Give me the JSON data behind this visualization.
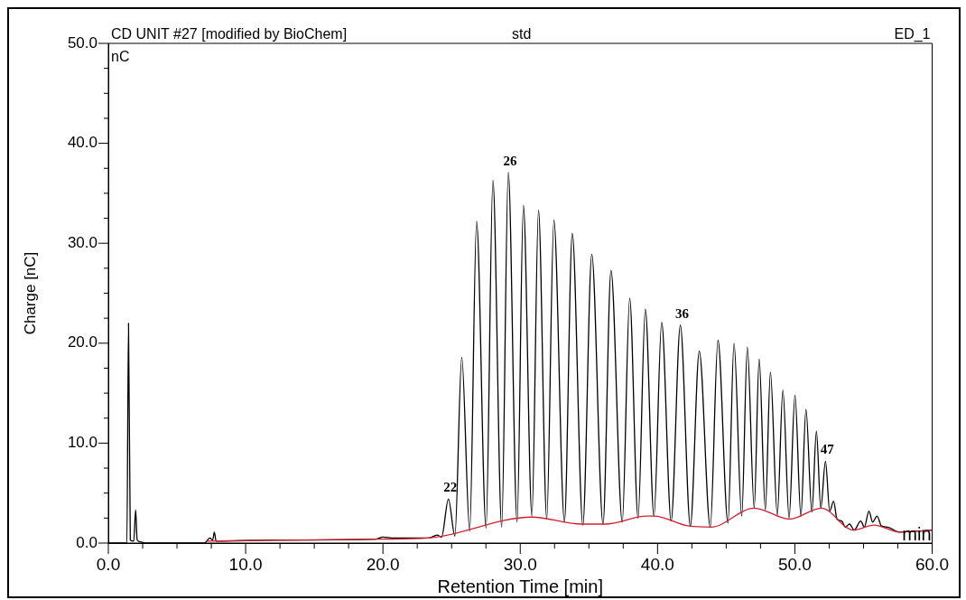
{
  "chart_data": {
    "type": "line",
    "title": "CD UNIT #27 [modified by BioChem]",
    "subtitle": "std",
    "xlabel": "Retention Time [min]",
    "ylabel": "Charge [nC]",
    "annotations": [
      "ED_1",
      "nC",
      "min",
      {
        "text": "22",
        "x": 24.77,
        "y": 4.4
      },
      {
        "text": "26",
        "x": 29.13,
        "y": 37.1
      },
      {
        "text": "36",
        "x": 41.66,
        "y": 21.8
      },
      {
        "text": "47",
        "x": 52.23,
        "y": 8.2
      }
    ],
    "xlim": [
      0,
      60
    ],
    "xticks": [
      {
        "value": 0,
        "label": "0.0"
      },
      {
        "value": 2.5,
        "label": null
      },
      {
        "value": 5,
        "label": null
      },
      {
        "value": 7.5,
        "label": null
      },
      {
        "value": 10,
        "label": "10.0"
      },
      {
        "value": 12.5,
        "label": null
      },
      {
        "value": 15,
        "label": null
      },
      {
        "value": 17.5,
        "label": null
      },
      {
        "value": 20,
        "label": "20.0"
      },
      {
        "value": 22.5,
        "label": null
      },
      {
        "value": 25,
        "label": null
      },
      {
        "value": 27.5,
        "label": null
      },
      {
        "value": 30,
        "label": "30.0"
      },
      {
        "value": 32.5,
        "label": null
      },
      {
        "value": 35,
        "label": null
      },
      {
        "value": 37.5,
        "label": null
      },
      {
        "value": 40,
        "label": "40.0"
      },
      {
        "value": 42.5,
        "label": null
      },
      {
        "value": 45,
        "label": null
      },
      {
        "value": 47.5,
        "label": null
      },
      {
        "value": 50,
        "label": "50.0"
      },
      {
        "value": 52.5,
        "label": null
      },
      {
        "value": 55,
        "label": null
      },
      {
        "value": 57.5,
        "label": null
      },
      {
        "value": 60,
        "label": "60.0"
      }
    ],
    "ylim": [
      0,
      50
    ],
    "yticks": [
      {
        "value": 0,
        "label": "0.0"
      },
      {
        "value": 2.5,
        "label": null
      },
      {
        "value": 5,
        "label": null
      },
      {
        "value": 7.5,
        "label": null
      },
      {
        "value": 10,
        "label": "10.0"
      },
      {
        "value": 12.5,
        "label": null
      },
      {
        "value": 15,
        "label": null
      },
      {
        "value": 17.5,
        "label": null
      },
      {
        "value": 20,
        "label": "20.0"
      },
      {
        "value": 22.5,
        "label": null
      },
      {
        "value": 25,
        "label": null
      },
      {
        "value": 27.5,
        "label": null
      },
      {
        "value": 30,
        "label": "30.0"
      },
      {
        "value": 32.5,
        "label": null
      },
      {
        "value": 35,
        "label": null
      },
      {
        "value": 37.5,
        "label": null
      },
      {
        "value": 40,
        "label": "40.0"
      },
      {
        "value": 42.5,
        "label": null
      },
      {
        "value": 45,
        "label": null
      },
      {
        "value": 47.5,
        "label": null
      },
      {
        "value": 50,
        "label": "50.0"
      }
    ],
    "series": [
      {
        "color": "#000000",
        "x": [
          0,
          1.35,
          1.47,
          1.6,
          1.85,
          1.99,
          2.1,
          2.4,
          2.7,
          7.0,
          7.4,
          7.6,
          7.72,
          7.85,
          12.0,
          19.5,
          20.0,
          20.8,
          23.3,
          23.95,
          24.27,
          24.77,
          25.24,
          25.74,
          26.32,
          26.82,
          27.51,
          28.01,
          28.65,
          29.13,
          29.77,
          30.23,
          30.85,
          31.33,
          31.93,
          32.45,
          33.22,
          33.79,
          34.56,
          35.21,
          36.03,
          36.61,
          37.43,
          37.97,
          38.58,
          39.11,
          39.74,
          40.3,
          40.99,
          41.66,
          42.39,
          43.04,
          43.84,
          44.4,
          45.13,
          45.57,
          46.13,
          46.54,
          47.04,
          47.4,
          47.85,
          48.22,
          48.72,
          49.13,
          49.58,
          50.01,
          50.44,
          50.81,
          51.24,
          51.57,
          51.89,
          52.23,
          52.54,
          52.82,
          53.07,
          53.42,
          53.68,
          53.98,
          54.32,
          54.8,
          55.06,
          55.4,
          55.66,
          55.99,
          56.31,
          56.74,
          57.61,
          60
        ],
        "values": [
          0,
          0,
          22,
          0.3,
          0.2,
          3.3,
          0.3,
          0.1,
          0,
          0,
          0.5,
          0.3,
          1.1,
          0.2,
          0.3,
          0.4,
          0.6,
          0.5,
          0.5,
          0.8,
          0.6,
          4.4,
          0.7,
          18.6,
          1.2,
          32.2,
          1.5,
          36.3,
          1.6,
          37.1,
          2.1,
          33.8,
          2.7,
          33.3,
          2.4,
          32.3,
          2.1,
          31.0,
          1.8,
          28.9,
          1.9,
          27.3,
          2.1,
          24.5,
          2.5,
          23.4,
          2.7,
          22.1,
          2.2,
          21.8,
          1.7,
          19.2,
          1.6,
          20.3,
          2.0,
          20.0,
          2.7,
          19.6,
          3.5,
          18.4,
          3.3,
          17.1,
          2.8,
          15.3,
          2.5,
          14.8,
          2.7,
          13.4,
          3.1,
          11.2,
          3.5,
          8.2,
          3.2,
          4.2,
          2.4,
          2.2,
          1.6,
          1.9,
          1.3,
          2.2,
          1.6,
          3.2,
          2.1,
          2.7,
          1.7,
          1.6,
          1.1,
          1.3
        ]
      },
      {
        "color": "#d02030",
        "x": [
          7.2,
          20.0,
          23.3,
          30.85,
          34.5,
          36.2,
          39.2,
          39.74,
          42.3,
          43.9,
          47.04,
          49.62,
          51.93,
          54.26,
          55.77,
          57.61,
          60
        ],
        "values": [
          0.2,
          0.4,
          0.5,
          2.6,
          1.9,
          1.9,
          2.7,
          2.7,
          1.7,
          1.6,
          3.5,
          2.4,
          3.5,
          1.3,
          1.8,
          1.1,
          1.3
        ]
      }
    ]
  }
}
